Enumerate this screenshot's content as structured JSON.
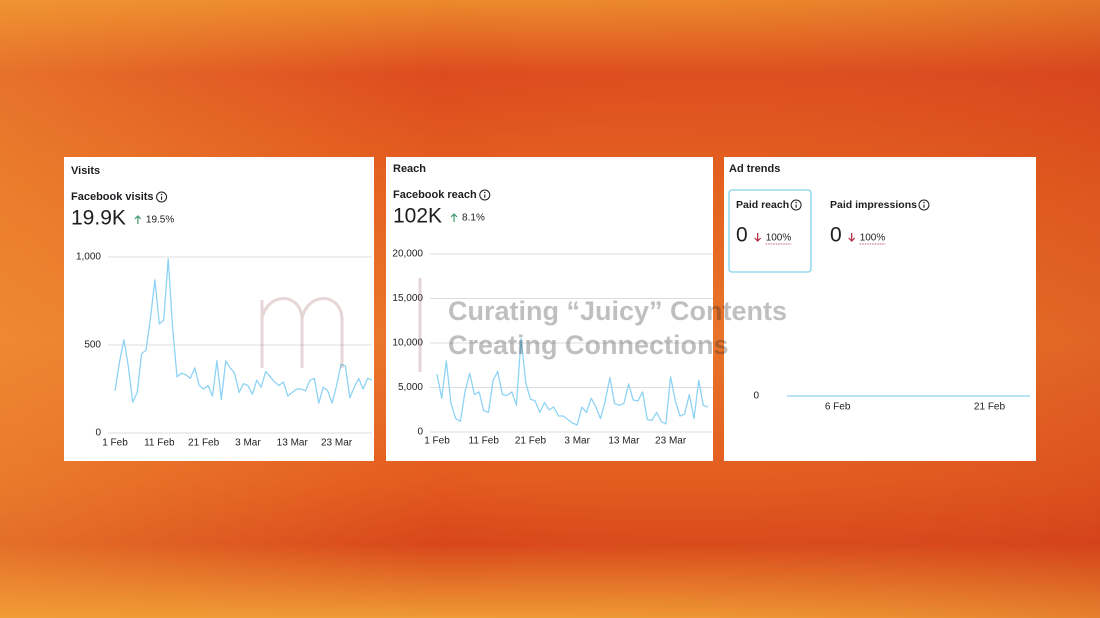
{
  "chart_data": [
    {
      "type": "line",
      "title": "Visits",
      "metric": "Facebook visits",
      "total": "19.9K",
      "change": "19.5%",
      "change_direction": "up",
      "color": "#8fd3f4",
      "categories": [
        "1 Feb",
        null,
        null,
        null,
        null,
        null,
        null,
        null,
        null,
        null,
        "11 Feb",
        null,
        null,
        null,
        null,
        null,
        null,
        null,
        null,
        null,
        "21 Feb",
        null,
        null,
        null,
        null,
        null,
        null,
        null,
        null,
        null,
        "3 Mar",
        null,
        null,
        null,
        null,
        null,
        null,
        null,
        null,
        null,
        "13 Mar",
        null,
        null,
        null,
        null,
        null,
        null,
        null,
        null,
        null,
        "23 Mar",
        null,
        null,
        null,
        null,
        null,
        null,
        null,
        null
      ],
      "values": [
        240,
        400,
        530,
        380,
        175,
        230,
        450,
        470,
        650,
        870,
        620,
        640,
        990,
        600,
        320,
        340,
        330,
        310,
        370,
        270,
        250,
        270,
        210,
        410,
        190,
        410,
        370,
        340,
        230,
        280,
        270,
        220,
        300,
        260,
        350,
        320,
        290,
        270,
        290,
        210,
        230,
        250,
        250,
        240,
        300,
        310,
        170,
        260,
        240,
        170,
        270,
        390,
        380,
        200,
        260,
        310,
        250,
        310,
        300
      ],
      "ylim": [
        0,
        1000
      ],
      "yticks": [
        {
          "value": 1000,
          "label": "1,000"
        },
        500,
        0
      ],
      "grid": true
    },
    {
      "type": "line",
      "title": "Reach",
      "metric": "Facebook reach",
      "total": "102K",
      "change": "8.1%",
      "change_direction": "up",
      "color": "#8fd3f4",
      "categories": [
        "1 Feb",
        null,
        null,
        null,
        null,
        null,
        null,
        null,
        null,
        null,
        "11 Feb",
        null,
        null,
        null,
        null,
        null,
        null,
        null,
        null,
        null,
        "21 Feb",
        null,
        null,
        null,
        null,
        null,
        null,
        null,
        null,
        null,
        "3 Mar",
        null,
        null,
        null,
        null,
        null,
        null,
        null,
        null,
        null,
        "13 Mar",
        null,
        null,
        null,
        null,
        null,
        null,
        null,
        null,
        null,
        "23 Mar",
        null,
        null,
        null,
        null,
        null,
        null,
        null,
        null
      ],
      "values": [
        6500,
        3800,
        8000,
        3200,
        1500,
        1200,
        4500,
        6600,
        4200,
        4500,
        2400,
        2200,
        5800,
        6800,
        4200,
        4100,
        4500,
        3000,
        10500,
        5500,
        3700,
        3500,
        2200,
        3300,
        2500,
        2800,
        1800,
        1800,
        1400,
        1000,
        800,
        2800,
        2200,
        3800,
        2800,
        1500,
        3500,
        6100,
        3200,
        3000,
        3200,
        5400,
        3600,
        3500,
        4500,
        1400,
        1300,
        2200,
        1200,
        900,
        6200,
        3500,
        1800,
        2000,
        4200,
        1500,
        5800,
        3000,
        2800
      ],
      "ylim": [
        0,
        20000
      ],
      "yticks": [
        {
          "value": 20000,
          "label": "20,000"
        },
        {
          "value": 15000,
          "label": "15,000"
        },
        {
          "value": 10000,
          "label": "10,000"
        },
        {
          "value": 5000,
          "label": "5,000"
        },
        0
      ],
      "grid": true
    },
    {
      "type": "line",
      "title": "Ad trends",
      "color": "#8fd3f4",
      "kpis": [
        {
          "label": "Paid reach",
          "value": 0,
          "change": "100%",
          "change_direction": "down",
          "selected": true
        },
        {
          "label": "Paid impressions",
          "value": 0,
          "change": "100%",
          "change_direction": "down",
          "selected": false
        }
      ],
      "categories": [
        null,
        null,
        null,
        null,
        null,
        "6 Feb",
        null,
        null,
        null,
        null,
        null,
        null,
        null,
        null,
        null,
        null,
        null,
        null,
        null,
        null,
        "21 Feb",
        null,
        null,
        null,
        null
      ],
      "values": [
        0,
        0,
        0,
        0,
        0,
        0,
        0,
        0,
        0,
        0,
        0,
        0,
        0,
        0,
        0,
        0,
        0,
        0,
        0,
        0,
        0,
        0,
        0,
        0,
        0
      ],
      "ylim": [
        0,
        1
      ],
      "yticks": [
        0
      ],
      "grid": false
    }
  ],
  "watermark": [
    "Curating “Juicy” Contents",
    "Creating Connections"
  ]
}
